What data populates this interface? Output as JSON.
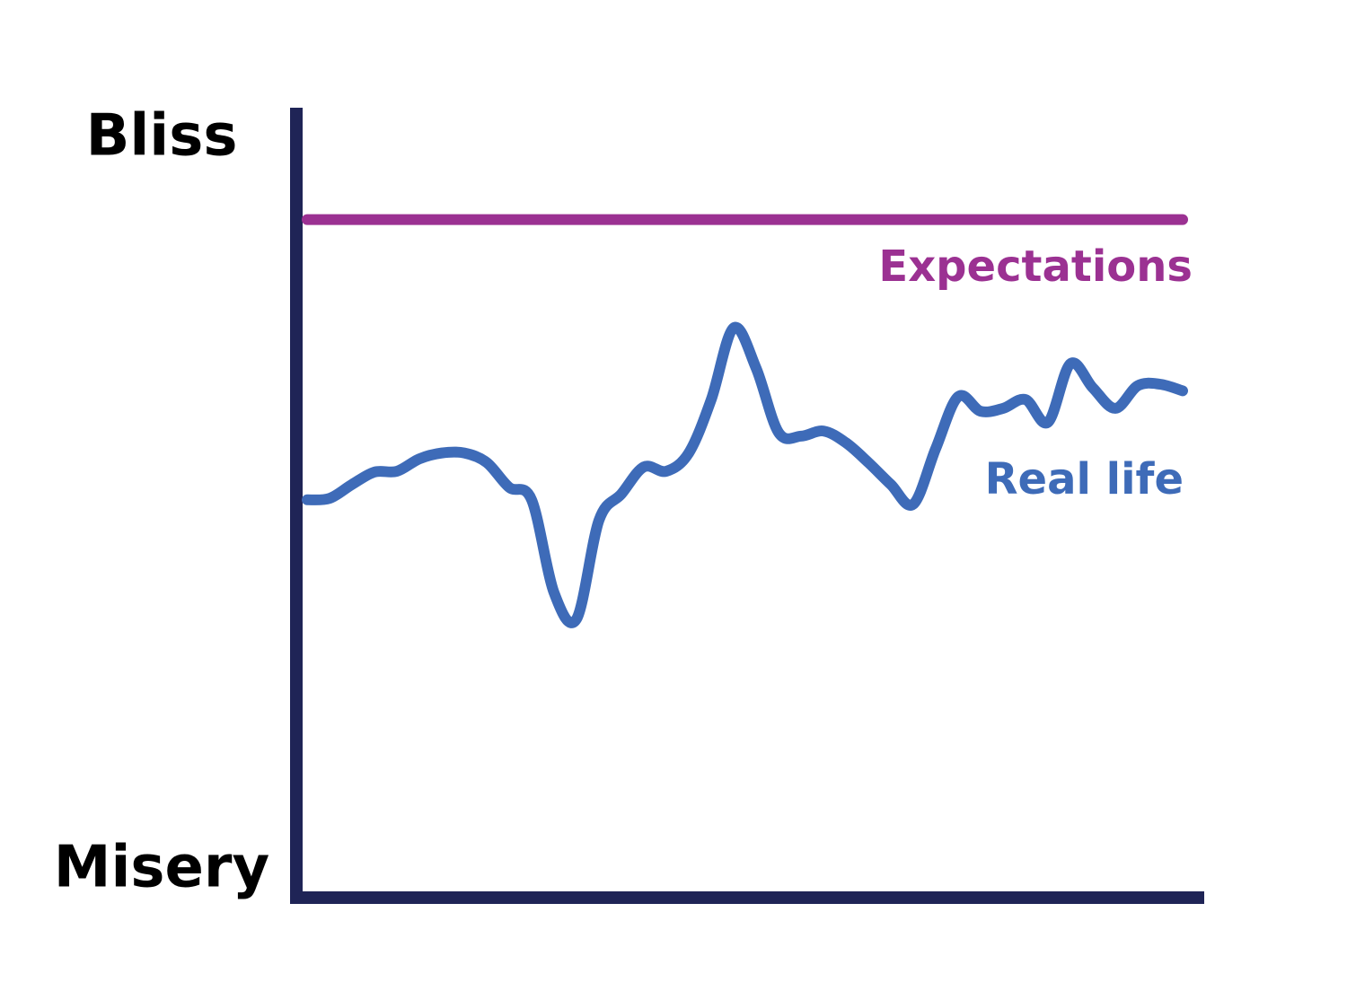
{
  "chart_data": {
    "type": "line",
    "categories": [
      null,
      null,
      null,
      null,
      null,
      null,
      null,
      null,
      null,
      null,
      null,
      null,
      null,
      null,
      null,
      null,
      null,
      null,
      null,
      null,
      null,
      null,
      null,
      null,
      null,
      null,
      null,
      null,
      null,
      null,
      null,
      null,
      null,
      null,
      null,
      null,
      null,
      null,
      null,
      null
    ],
    "ylim": [
      0,
      100
    ],
    "yticks": [
      {
        "value": 0,
        "label": "Misery"
      },
      {
        "value": 100,
        "label": "Bliss"
      }
    ],
    "axis_color": "#1f2456",
    "series": [
      {
        "name": "Expectations",
        "color": "#9b3192",
        "values": [
          89,
          89,
          89,
          89,
          89,
          89,
          89,
          89,
          89,
          89,
          89,
          89,
          89,
          89,
          89,
          89,
          89,
          89,
          89,
          89,
          89,
          89,
          89,
          89,
          89,
          89,
          89,
          89,
          89,
          89,
          89,
          89,
          89,
          89,
          89,
          89,
          89,
          89,
          89,
          89
        ]
      },
      {
        "name": "Real life",
        "color": "#3e6bb8",
        "values": [
          50.7,
          50.9,
          52.8,
          54.5,
          54.6,
          56.3,
          57.1,
          57.1,
          55.8,
          52.4,
          50.7,
          38.0,
          34.4,
          47.9,
          51.5,
          55.2,
          54.6,
          57.1,
          64.4,
          74.2,
          68.7,
          59.9,
          59.4,
          60.1,
          58.5,
          55.8,
          52.8,
          50.1,
          57.7,
          64.8,
          62.8,
          63.2,
          64.4,
          61.3,
          69.3,
          66.0,
          63.2,
          66.3,
          66.5,
          65.6
        ]
      }
    ]
  }
}
